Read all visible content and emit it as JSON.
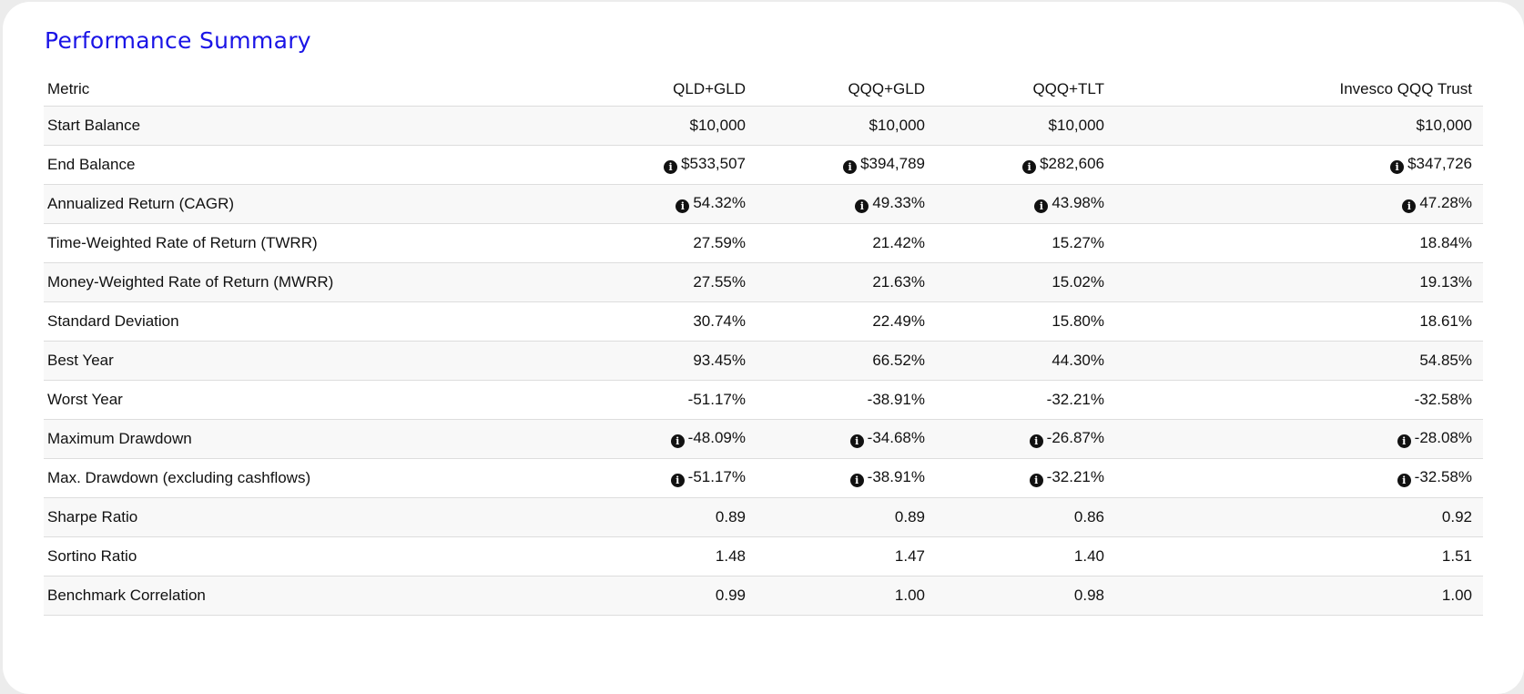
{
  "title": "Performance Summary",
  "table": {
    "headers": [
      "Metric",
      "QLD+GLD",
      "QQQ+GLD",
      "QQQ+TLT",
      "Invesco QQQ Trust"
    ],
    "rows": [
      {
        "metric": "Start Balance",
        "info": false,
        "values": [
          "$10,000",
          "$10,000",
          "$10,000",
          "$10,000"
        ]
      },
      {
        "metric": "End Balance",
        "info": true,
        "values": [
          "$533,507",
          "$394,789",
          "$282,606",
          "$347,726"
        ]
      },
      {
        "metric": "Annualized Return (CAGR)",
        "info": true,
        "values": [
          "54.32%",
          "49.33%",
          "43.98%",
          "47.28%"
        ]
      },
      {
        "metric": "Time-Weighted Rate of Return (TWRR)",
        "info": false,
        "values": [
          "27.59%",
          "21.42%",
          "15.27%",
          "18.84%"
        ]
      },
      {
        "metric": "Money-Weighted Rate of Return (MWRR)",
        "info": false,
        "values": [
          "27.55%",
          "21.63%",
          "15.02%",
          "19.13%"
        ]
      },
      {
        "metric": "Standard Deviation",
        "info": false,
        "values": [
          "30.74%",
          "22.49%",
          "15.80%",
          "18.61%"
        ]
      },
      {
        "metric": "Best Year",
        "info": false,
        "values": [
          "93.45%",
          "66.52%",
          "44.30%",
          "54.85%"
        ]
      },
      {
        "metric": "Worst Year",
        "info": false,
        "values": [
          "-51.17%",
          "-38.91%",
          "-32.21%",
          "-32.58%"
        ]
      },
      {
        "metric": "Maximum Drawdown",
        "info": true,
        "values": [
          "-48.09%",
          "-34.68%",
          "-26.87%",
          "-28.08%"
        ]
      },
      {
        "metric": "Max. Drawdown (excluding cashflows)",
        "info": true,
        "values": [
          "-51.17%",
          "-38.91%",
          "-32.21%",
          "-32.58%"
        ]
      },
      {
        "metric": "Sharpe Ratio",
        "info": false,
        "values": [
          "0.89",
          "0.89",
          "0.86",
          "0.92"
        ]
      },
      {
        "metric": "Sortino Ratio",
        "info": false,
        "values": [
          "1.48",
          "1.47",
          "1.40",
          "1.51"
        ]
      },
      {
        "metric": "Benchmark Correlation",
        "info": false,
        "values": [
          "0.99",
          "1.00",
          "0.98",
          "1.00"
        ]
      }
    ]
  },
  "icons": {
    "info": "info-circle-icon"
  },
  "colors": {
    "title": "#1a14e6",
    "text": "#111111",
    "row_stripe": "#f8f8f8",
    "border": "#dddddd"
  }
}
